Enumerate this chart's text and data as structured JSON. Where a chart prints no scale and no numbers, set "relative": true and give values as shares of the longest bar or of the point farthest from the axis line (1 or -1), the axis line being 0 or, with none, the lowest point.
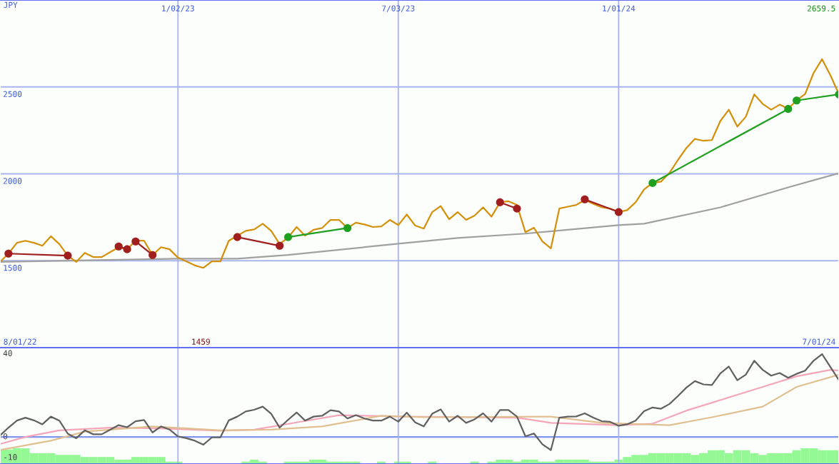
{
  "chart_data": [
    {
      "type": "line",
      "ylabel": "JPY",
      "xlim": [
        "2022-08-08",
        "2024-07-01"
      ],
      "xticks": [
        {
          "value": "2023-01-02",
          "label": "1/02/23"
        },
        {
          "value": "2023-07-03",
          "label": "7/03/23"
        },
        {
          "value": "2024-01-01",
          "label": "1/01/24"
        }
      ],
      "ylim": [
        1000,
        3000
      ],
      "yticks": [
        1500,
        2000,
        2500
      ],
      "grid": true,
      "annotations": [
        "2659.5",
        "1459",
        "8/01/22",
        "7/01/24"
      ],
      "x": [
        "2022-08-08",
        "2022-08-15",
        "2022-08-22",
        "2022-08-29",
        "2022-09-05",
        "2022-09-12",
        "2022-09-19",
        "2022-09-26",
        "2022-10-03",
        "2022-10-10",
        "2022-10-17",
        "2022-10-24",
        "2022-10-31",
        "2022-11-07",
        "2022-11-14",
        "2022-11-21",
        "2022-11-28",
        "2022-12-05",
        "2022-12-12",
        "2022-12-19",
        "2022-12-26",
        "2023-01-02",
        "2023-01-09",
        "2023-01-16",
        "2023-01-23",
        "2023-01-30",
        "2023-02-06",
        "2023-02-13",
        "2023-02-20",
        "2023-02-27",
        "2023-03-06",
        "2023-03-13",
        "2023-03-20",
        "2023-03-27",
        "2023-04-03",
        "2023-04-10",
        "2023-04-17",
        "2023-04-24",
        "2023-05-01",
        "2023-05-08",
        "2023-05-15",
        "2023-05-22",
        "2023-05-29",
        "2023-06-05",
        "2023-06-12",
        "2023-06-19",
        "2023-06-26",
        "2023-07-03",
        "2023-07-10",
        "2023-07-17",
        "2023-07-24",
        "2023-07-31",
        "2023-08-07",
        "2023-08-14",
        "2023-08-21",
        "2023-08-28",
        "2023-09-04",
        "2023-09-11",
        "2023-09-18",
        "2023-09-25",
        "2023-10-02",
        "2023-10-09",
        "2023-10-16",
        "2023-10-23",
        "2023-10-30",
        "2023-11-06",
        "2023-11-13",
        "2023-11-20",
        "2023-11-27",
        "2023-12-04",
        "2023-12-11",
        "2023-12-18",
        "2023-12-25",
        "2024-01-01",
        "2024-01-08",
        "2024-01-15",
        "2024-01-22",
        "2024-01-29",
        "2024-02-05",
        "2024-02-12",
        "2024-02-19",
        "2024-02-26",
        "2024-03-04",
        "2024-03-11",
        "2024-03-18",
        "2024-03-25",
        "2024-04-01",
        "2024-04-08",
        "2024-04-15",
        "2024-04-22",
        "2024-04-29",
        "2024-05-06",
        "2024-05-13",
        "2024-05-20",
        "2024-05-27",
        "2024-06-03",
        "2024-06-10",
        "2024-06-17",
        "2024-06-24",
        "2024-07-01"
      ],
      "series": [
        {
          "color": "#a0a0a0",
          "x": [
            "2022-08-08",
            "2022-10-03",
            "2023-01-02",
            "2023-02-20",
            "2023-04-03",
            "2023-07-03",
            "2023-08-21",
            "2023-10-16",
            "2024-01-01",
            "2024-01-22",
            "2024-03-25",
            "2024-05-20",
            "2024-07-01"
          ],
          "values": [
            1493,
            1500,
            1512,
            1512,
            1533,
            1598,
            1631,
            1656,
            1705,
            1713,
            1807,
            1922,
            2004
          ]
        },
        {
          "color": "#d4900a",
          "values": [
            1493,
            1541,
            1603,
            1615,
            1603,
            1586,
            1641,
            1596,
            1529,
            1493,
            1545,
            1521,
            1521,
            1549,
            1578,
            1566,
            1615,
            1615,
            1533,
            1578,
            1566,
            1518,
            1496,
            1473,
            1459,
            1496,
            1496,
            1615,
            1644,
            1672,
            1680,
            1713,
            1672,
            1596,
            1634,
            1694,
            1644,
            1678,
            1688,
            1735,
            1735,
            1688,
            1719,
            1709,
            1694,
            1698,
            1735,
            1705,
            1766,
            1702,
            1685,
            1780,
            1815,
            1739,
            1780,
            1735,
            1760,
            1807,
            1754,
            1836,
            1842,
            1821,
            1664,
            1690,
            1611,
            1571,
            1800,
            1811,
            1821,
            1849,
            1828,
            1807,
            1800,
            1780,
            1791,
            1836,
            1910,
            1947,
            1955,
            2006,
            2080,
            2149,
            2201,
            2190,
            2194,
            2304,
            2369,
            2272,
            2328,
            2457,
            2402,
            2369,
            2398,
            2375,
            2422,
            2459,
            2580,
            2659.5,
            2566,
            2457
          ]
        },
        {
          "color": "#a01e1e",
          "marker": "circle",
          "x": [
            "2022-08-15",
            "2022-10-03"
          ],
          "values": [
            1541,
            1529
          ]
        },
        {
          "color": "#a01e1e",
          "marker": "circle",
          "x": [
            "2022-11-14",
            "2022-11-21"
          ],
          "values": [
            1582,
            1566
          ]
        },
        {
          "color": "#a01e1e",
          "marker": "circle",
          "x": [
            "2022-11-28",
            "2022-12-12"
          ],
          "values": [
            1611,
            1533
          ]
        },
        {
          "color": "#a01e1e",
          "marker": "circle",
          "x": [
            "2023-02-20",
            "2023-03-27"
          ],
          "values": [
            1636,
            1586
          ]
        },
        {
          "color": "#20a020",
          "marker": "circle",
          "x": [
            "2023-04-03",
            "2023-05-22"
          ],
          "values": [
            1636,
            1688
          ]
        },
        {
          "color": "#a01e1e",
          "marker": "circle",
          "x": [
            "2023-09-25",
            "2023-10-09"
          ],
          "values": [
            1836,
            1800
          ]
        },
        {
          "color": "#a01e1e",
          "marker": "circle",
          "x": [
            "2023-12-04",
            "2024-01-01"
          ],
          "values": [
            1853,
            1780
          ]
        },
        {
          "color": "#20a020",
          "marker": "circle",
          "x": [
            "2024-01-29",
            "2024-05-20"
          ],
          "values": [
            1947,
            2373
          ]
        },
        {
          "color": "#20a020",
          "marker": "circle",
          "x": [
            "2024-05-27",
            "2024-07-01"
          ],
          "values": [
            2422,
            2457
          ]
        }
      ]
    },
    {
      "type": "line",
      "xlim": [
        "2022-08-08",
        "2024-07-01"
      ],
      "xticks": [
        {
          "value": "2023-01-02",
          "label": null
        },
        {
          "value": "2023-07-03",
          "label": null
        },
        {
          "value": "2024-01-01",
          "label": null
        }
      ],
      "ylim": [
        -13,
        43
      ],
      "yticks": [
        -10,
        0,
        40
      ],
      "grid": "x",
      "tick_labels": "y",
      "ref_lines": [
        {
          "axis": "y",
          "value": 0,
          "color": "#8094f0"
        }
      ],
      "x": [
        "2022-08-08",
        "2022-08-15",
        "2022-08-22",
        "2022-08-29",
        "2022-09-05",
        "2022-09-12",
        "2022-09-19",
        "2022-09-26",
        "2022-10-03",
        "2022-10-10",
        "2022-10-17",
        "2022-10-24",
        "2022-10-31",
        "2022-11-07",
        "2022-11-14",
        "2022-11-21",
        "2022-11-28",
        "2022-12-05",
        "2022-12-12",
        "2022-12-19",
        "2022-12-26",
        "2023-01-02",
        "2023-01-09",
        "2023-01-16",
        "2023-01-23",
        "2023-01-30",
        "2023-02-06",
        "2023-02-13",
        "2023-02-20",
        "2023-02-27",
        "2023-03-06",
        "2023-03-13",
        "2023-03-20",
        "2023-03-27",
        "2023-04-03",
        "2023-04-10",
        "2023-04-17",
        "2023-04-24",
        "2023-05-01",
        "2023-05-08",
        "2023-05-15",
        "2023-05-22",
        "2023-05-29",
        "2023-06-05",
        "2023-06-12",
        "2023-06-19",
        "2023-06-26",
        "2023-07-03",
        "2023-07-10",
        "2023-07-17",
        "2023-07-24",
        "2023-07-31",
        "2023-08-07",
        "2023-08-14",
        "2023-08-21",
        "2023-08-28",
        "2023-09-04",
        "2023-09-11",
        "2023-09-18",
        "2023-09-25",
        "2023-10-02",
        "2023-10-09",
        "2023-10-16",
        "2023-10-23",
        "2023-10-30",
        "2023-11-06",
        "2023-11-13",
        "2023-11-20",
        "2023-11-27",
        "2023-12-04",
        "2023-12-11",
        "2023-12-18",
        "2023-12-25",
        "2024-01-01",
        "2024-01-08",
        "2024-01-15",
        "2024-01-22",
        "2024-01-29",
        "2024-02-05",
        "2024-02-12",
        "2024-02-19",
        "2024-02-26",
        "2024-03-04",
        "2024-03-11",
        "2024-03-18",
        "2024-03-25",
        "2024-04-01",
        "2024-04-08",
        "2024-04-15",
        "2024-04-22",
        "2024-04-29",
        "2024-05-06",
        "2024-05-13",
        "2024-05-20",
        "2024-05-27",
        "2024-06-03",
        "2024-06-10",
        "2024-06-17",
        "2024-06-24",
        "2024-07-01"
      ],
      "series": [
        {
          "color": "#f4a6b8",
          "x": [
            "2022-08-08",
            "2022-08-29",
            "2022-09-26",
            "2022-11-07",
            "2022-12-19",
            "2023-02-06",
            "2023-03-06",
            "2023-04-10",
            "2023-05-15",
            "2023-07-10",
            "2023-10-09",
            "2023-11-06",
            "2024-01-01",
            "2024-01-29",
            "2024-02-26",
            "2024-04-29",
            "2024-05-27",
            "2024-06-24",
            "2024-07-01"
          ],
          "values": [
            -3.4,
            0,
            3.2,
            4.5,
            4.1,
            3.0,
            3.5,
            7.0,
            10.5,
            9.8,
            9.3,
            6.8,
            5.7,
            6.4,
            12.7,
            24.1,
            29.2,
            32.3,
            32.0
          ]
        },
        {
          "color": "#e0c090",
          "x": [
            "2022-08-08",
            "2022-09-19",
            "2022-10-17",
            "2022-12-12",
            "2023-02-06",
            "2023-03-20",
            "2023-05-01",
            "2023-06-19",
            "2023-07-24",
            "2023-11-06",
            "2023-12-18",
            "2024-02-12",
            "2024-03-18",
            "2024-04-29",
            "2024-05-27",
            "2024-07-01"
          ],
          "values": [
            -6.3,
            -1.8,
            2.6,
            5.1,
            3.2,
            3.5,
            5.1,
            10.2,
            9.5,
            9.8,
            6.8,
            5.7,
            9.5,
            14.6,
            24.1,
            30.0
          ]
        },
        {
          "color": "#606060",
          "values": [
            0.7,
            4.5,
            7.9,
            9.3,
            8.0,
            6.1,
            9.8,
            7.9,
            1.6,
            -0.6,
            3.2,
            1.3,
            1.3,
            3.5,
            5.7,
            4.7,
            7.6,
            8.2,
            2.2,
            5.1,
            3.6,
            0.3,
            -0.6,
            -1.8,
            -3.7,
            -0.2,
            -0.2,
            8.0,
            9.8,
            12.3,
            13.1,
            14.6,
            11.2,
            4.5,
            8.3,
            11.8,
            7.9,
            9.8,
            10.2,
            12.9,
            12.3,
            8.9,
            10.5,
            8.9,
            7.9,
            7.9,
            9.8,
            7.4,
            11.7,
            7.0,
            5.1,
            11.2,
            13.3,
            7.4,
            10.2,
            6.8,
            8.5,
            11.4,
            7.4,
            13.0,
            13.0,
            9.8,
            0.3,
            1.7,
            -3.5,
            -6.3,
            9.3,
            9.8,
            9.9,
            11.4,
            9.3,
            7.6,
            7.3,
            5.4,
            6.1,
            7.9,
            12.4,
            14.2,
            13.6,
            15.9,
            19.7,
            23.8,
            26.9,
            25.3,
            25.0,
            30.6,
            33.9,
            27.3,
            30.0,
            36.7,
            32.3,
            29.5,
            30.8,
            28.5,
            30.4,
            31.9,
            36.7,
            39.9,
            33.6,
            27.3
          ]
        }
      ]
    },
    {
      "type": "bar",
      "relative": true,
      "tick_labels": false,
      "xlim": [
        "2022-08-08",
        "2024-07-01"
      ],
      "x": [
        "2022-08-08",
        "2022-08-15",
        "2022-08-22",
        "2022-08-29",
        "2022-09-05",
        "2022-09-12",
        "2022-09-19",
        "2022-09-26",
        "2022-10-03",
        "2022-10-10",
        "2022-10-17",
        "2022-10-24",
        "2022-10-31",
        "2022-11-07",
        "2022-11-14",
        "2022-11-21",
        "2022-11-28",
        "2022-12-05",
        "2022-12-12",
        "2022-12-19",
        "2022-12-26",
        "2023-01-02",
        "2023-01-09",
        "2023-01-16",
        "2023-01-23",
        "2023-01-30",
        "2023-02-06",
        "2023-02-13",
        "2023-02-20",
        "2023-02-27",
        "2023-03-06",
        "2023-03-13",
        "2023-03-20",
        "2023-03-27",
        "2023-04-03",
        "2023-04-10",
        "2023-04-17",
        "2023-04-24",
        "2023-05-01",
        "2023-05-08",
        "2023-05-15",
        "2023-05-22",
        "2023-05-29",
        "2023-06-05",
        "2023-06-12",
        "2023-06-19",
        "2023-06-26",
        "2023-07-03",
        "2023-07-10",
        "2023-07-17",
        "2023-07-24",
        "2023-07-31",
        "2023-08-07",
        "2023-08-14",
        "2023-08-21",
        "2023-08-28",
        "2023-09-04",
        "2023-09-11",
        "2023-09-18",
        "2023-09-25",
        "2023-10-02",
        "2023-10-09",
        "2023-10-16",
        "2023-10-23",
        "2023-10-30",
        "2023-11-06",
        "2023-11-13",
        "2023-11-20",
        "2023-11-27",
        "2023-12-04",
        "2023-12-11",
        "2023-12-18",
        "2023-12-25",
        "2024-01-01",
        "2024-01-08",
        "2024-01-15",
        "2024-01-22",
        "2024-01-29",
        "2024-02-05",
        "2024-02-12",
        "2024-02-19",
        "2024-02-26",
        "2024-03-04",
        "2024-03-11",
        "2024-03-18",
        "2024-03-25",
        "2024-04-01",
        "2024-04-08",
        "2024-04-15",
        "2024-04-22",
        "2024-04-29",
        "2024-05-06",
        "2024-05-13",
        "2024-05-20",
        "2024-05-27",
        "2024-06-03",
        "2024-06-10",
        "2024-06-17",
        "2024-06-24",
        "2024-07-01"
      ],
      "series": [
        {
          "color": "#94f894",
          "values": [
            0.92,
            0.92,
            1,
            1,
            0.69,
            0.69,
            0.69,
            0.58,
            0.58,
            0.58,
            0.45,
            0.45,
            0.45,
            0.45,
            0.28,
            0.28,
            0.45,
            0.45,
            0.45,
            0.45,
            0.15,
            0.15,
            0,
            0,
            0,
            0,
            0,
            0,
            0,
            0.15,
            0.28,
            0.15,
            0,
            0,
            0.15,
            0.15,
            0.15,
            0.28,
            0.28,
            0.15,
            0.15,
            0.15,
            0.15,
            0,
            0,
            0.15,
            0,
            0.15,
            0.15,
            0,
            0,
            0.15,
            0,
            0,
            0,
            0,
            0.15,
            0,
            0.15,
            0.28,
            0.28,
            0.15,
            0.28,
            0.28,
            0.15,
            0.15,
            0.28,
            0.28,
            0.28,
            0.28,
            0.15,
            0.15,
            0.15,
            0.28,
            0.45,
            0.58,
            0.58,
            0.69,
            0.69,
            0.69,
            0.69,
            0.69,
            0.58,
            0.69,
            0.88,
            0.88,
            0.69,
            0.88,
            0.88,
            0.69,
            0.58,
            0.69,
            0.69,
            0.69,
            0.88,
            1,
            1,
            0.88,
            0.88,
            0.88
          ]
        }
      ]
    }
  ]
}
